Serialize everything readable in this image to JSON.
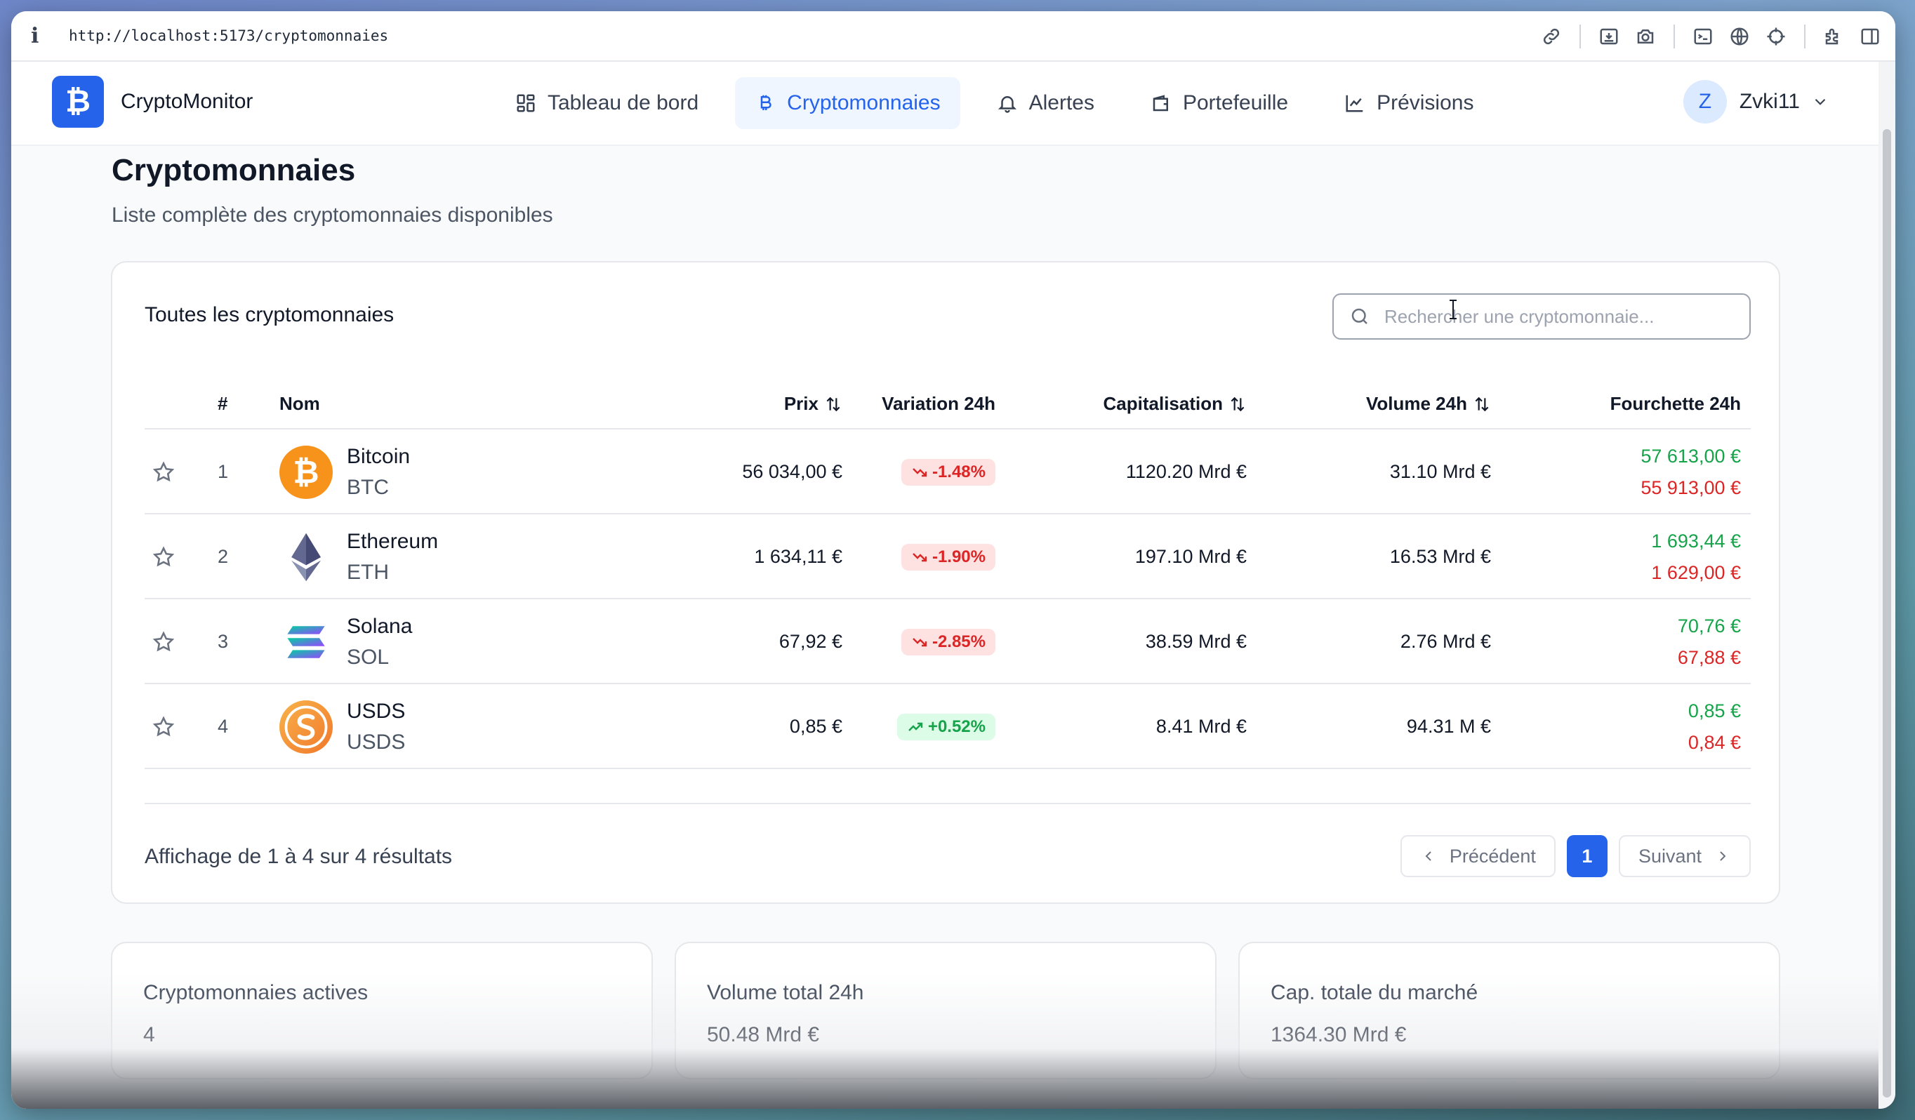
{
  "browser": {
    "url": "http://localhost:5173/cryptomonnaies",
    "info_glyph": "i"
  },
  "brand": {
    "logo_glyph": "₿",
    "name": "CryptoMonitor"
  },
  "nav": [
    {
      "label": "Tableau de bord",
      "icon": "dashboard-grid-icon"
    },
    {
      "label": "Cryptomonnaies",
      "icon": "bitcoin-icon",
      "active": true
    },
    {
      "label": "Alertes",
      "icon": "bell-icon"
    },
    {
      "label": "Portefeuille",
      "icon": "wallet-icon"
    },
    {
      "label": "Prévisions",
      "icon": "line-chart-icon"
    }
  ],
  "user": {
    "initial": "Z",
    "name": "Zvki11"
  },
  "page": {
    "title": "Cryptomonnaies",
    "subtitle": "Liste complète des cryptomonnaies disponibles"
  },
  "table_card": {
    "title": "Toutes les cryptomonnaies",
    "search_placeholder": "Rechercher une cryptomonnaie...",
    "headers": {
      "rank": "#",
      "name": "Nom",
      "price": "Prix",
      "change": "Variation 24h",
      "cap": "Capitalisation",
      "volume": "Volume 24h",
      "range": "Fourchette 24h"
    },
    "rows": [
      {
        "rank": "1",
        "name": "Bitcoin",
        "symbol": "BTC",
        "price": "56 034,00 €",
        "change": "-1.48%",
        "direction": "down",
        "cap": "1120.20 Mrd €",
        "volume": "31.10 Mrd €",
        "high": "57 613,00 €",
        "low": "55 913,00 €",
        "icon": "bitcoin-coin-icon"
      },
      {
        "rank": "2",
        "name": "Ethereum",
        "symbol": "ETH",
        "price": "1 634,11 €",
        "change": "-1.90%",
        "direction": "down",
        "cap": "197.10 Mrd €",
        "volume": "16.53 Mrd €",
        "high": "1 693,44 €",
        "low": "1 629,00 €",
        "icon": "ethereum-coin-icon"
      },
      {
        "rank": "3",
        "name": "Solana",
        "symbol": "SOL",
        "price": "67,92 €",
        "change": "-2.85%",
        "direction": "down",
        "cap": "38.59 Mrd €",
        "volume": "2.76 Mrd €",
        "high": "70,76 €",
        "low": "67,88 €",
        "icon": "solana-coin-icon"
      },
      {
        "rank": "4",
        "name": "USDS",
        "symbol": "USDS",
        "price": "0,85 €",
        "change": "+0.52%",
        "direction": "up",
        "cap": "8.41 Mrd €",
        "volume": "94.31 M €",
        "high": "0,85 €",
        "low": "0,84 €",
        "icon": "usds-coin-icon"
      }
    ],
    "results_text": "Affichage de 1 à 4 sur 4 résultats",
    "pagination": {
      "prev": "Précédent",
      "current": "1",
      "next": "Suivant"
    }
  },
  "stats": [
    {
      "label": "Cryptomonnaies actives",
      "value": "4"
    },
    {
      "label": "Volume total 24h",
      "value": "50.48 Mrd €"
    },
    {
      "label": "Cap. totale du marché",
      "value": "1364.30 Mrd €"
    }
  ],
  "colors": {
    "accent": "#2563eb",
    "positive": "#16a34a",
    "negative": "#dc2626",
    "bitcoin": "#f7931a",
    "usds": "#f59e3b"
  }
}
